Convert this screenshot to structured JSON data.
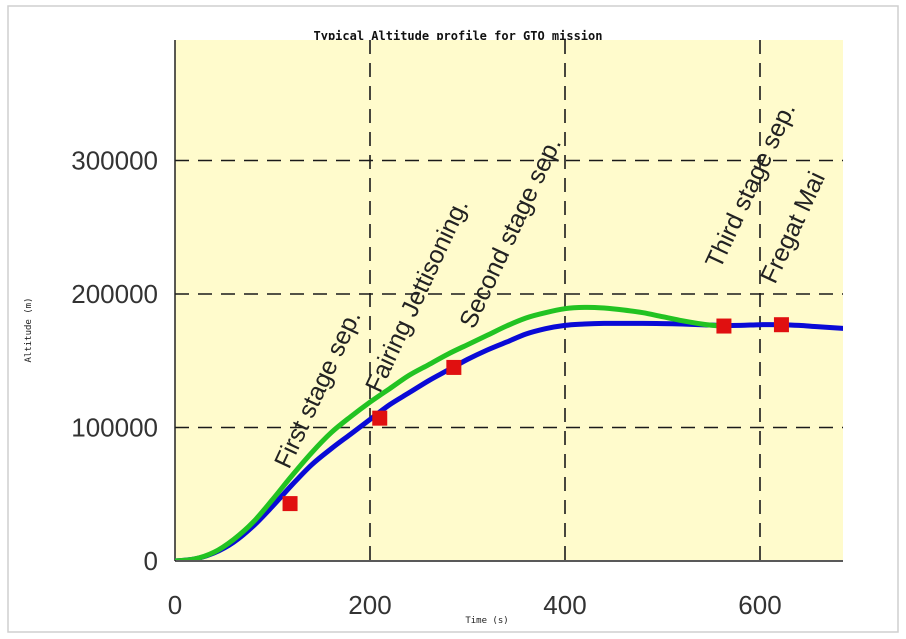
{
  "chart_data": {
    "type": "line",
    "title": "Typical Altitude profile for GTO mission",
    "xlabel": "Time (s)",
    "ylabel": "Altitude (m)",
    "xlim": [
      0,
      690
    ],
    "ylim": [
      0,
      380000
    ],
    "xticks": [
      0,
      200,
      400,
      600
    ],
    "yticks": [
      0,
      100000,
      200000,
      300000
    ],
    "xtick_labels": [
      "0",
      "200",
      "400",
      "600"
    ],
    "ytick_labels": [
      "0",
      "100000",
      "200000",
      "300000"
    ],
    "grid": "dashed",
    "background_color": "#fffbcc",
    "series": [
      {
        "color": "#0a0ad6",
        "x": [
          0,
          20,
          40,
          60,
          80,
          100,
          120,
          140,
          160,
          180,
          200,
          220,
          240,
          260,
          280,
          300,
          320,
          340,
          360,
          380,
          400,
          420,
          440,
          460,
          480,
          500,
          520,
          540,
          560,
          580,
          600,
          620,
          640,
          660,
          690
        ],
        "y": [
          0,
          1500,
          6000,
          14000,
          26000,
          41000,
          57000,
          72000,
          84000,
          95000,
          106000,
          117000,
          126000,
          135000,
          143000,
          151000,
          158000,
          164000,
          170000,
          174000,
          176500,
          177500,
          178000,
          178000,
          178000,
          177800,
          177500,
          177000,
          176500,
          176500,
          177000,
          177000,
          176500,
          175500,
          174000
        ]
      },
      {
        "color": "#22c322",
        "x": [
          0,
          20,
          40,
          60,
          80,
          100,
          120,
          140,
          160,
          180,
          200,
          220,
          240,
          260,
          280,
          300,
          320,
          340,
          360,
          380,
          400,
          420,
          440,
          460,
          480,
          500,
          520,
          540,
          560,
          565
        ],
        "y": [
          0,
          1500,
          6500,
          16000,
          29000,
          46000,
          64000,
          81000,
          96000,
          108000,
          119000,
          129000,
          139000,
          147000,
          155000,
          162000,
          169000,
          176000,
          182000,
          186000,
          189000,
          190000,
          189500,
          188000,
          186000,
          183000,
          180000,
          177500,
          176000,
          176000
        ]
      }
    ],
    "markers": [
      {
        "x": 118,
        "y": 43000,
        "color": "#e01010"
      },
      {
        "x": 210,
        "y": 107000,
        "color": "#e01010"
      },
      {
        "x": 286,
        "y": 145000,
        "color": "#e01010"
      },
      {
        "x": 563,
        "y": 176000,
        "color": "#e01010"
      },
      {
        "x": 622,
        "y": 177000,
        "color": "#e01010"
      }
    ],
    "annotations": [
      {
        "text": "First stage sep.",
        "x": 118
      },
      {
        "text": "Fairing Jettisoning.",
        "x": 210
      },
      {
        "text": "Second stage sep.",
        "x": 300
      },
      {
        "text": "Third stage sep.",
        "x": 563
      },
      {
        "text": "Fregat Mai",
        "x": 622
      }
    ],
    "vlines": [
      200,
      400,
      600
    ]
  }
}
